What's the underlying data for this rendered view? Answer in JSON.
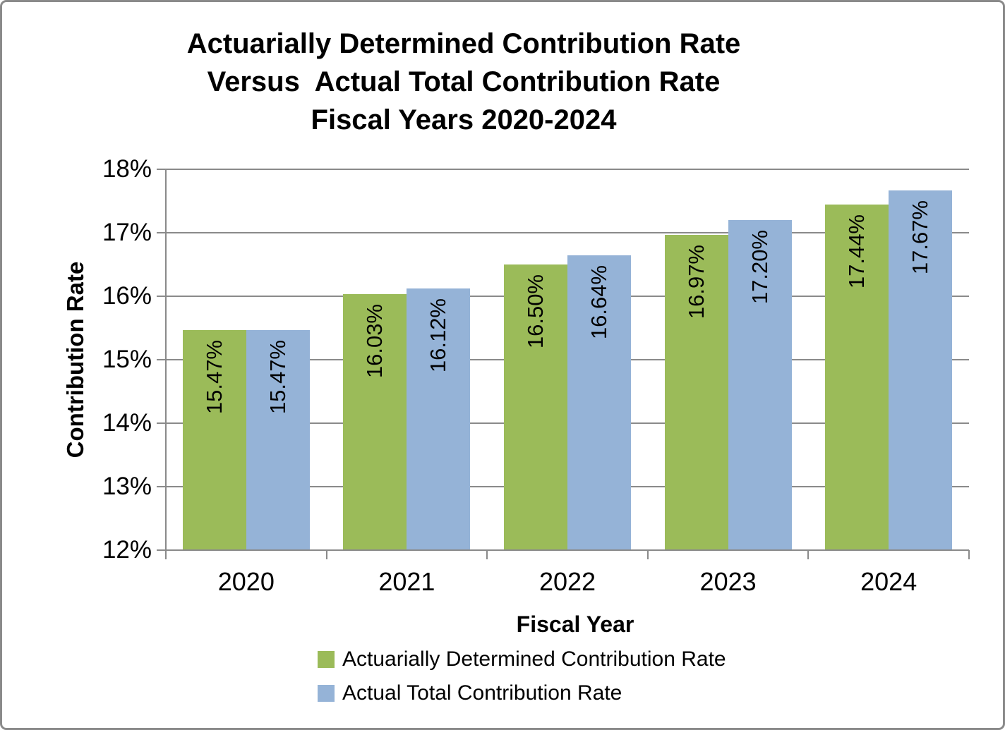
{
  "chart_data": {
    "type": "bar",
    "title": "Actuarially Determined Contribution Rate Versus Actual Total Contribution Rate Fiscal Years 2020-2024",
    "title_lines": [
      "Actuarially Determined Contribution Rate",
      "Versus  Actual Total Contribution Rate",
      "Fiscal Years 2020-2024"
    ],
    "xlabel": "Fiscal Year",
    "ylabel": "Contribution Rate",
    "categories": [
      "2020",
      "2021",
      "2022",
      "2023",
      "2024"
    ],
    "series": [
      {
        "name": "Actuarially Determined Contribution Rate",
        "color": "#9BBB59",
        "values": [
          15.47,
          16.03,
          16.5,
          16.97,
          17.44
        ],
        "labels": [
          "15.47%",
          "16.03%",
          "16.50%",
          "16.97%",
          "17.44%"
        ]
      },
      {
        "name": "Actual Total Contribution Rate",
        "color": "#95B3D7",
        "values": [
          15.47,
          16.12,
          16.64,
          17.2,
          17.67
        ],
        "labels": [
          "15.47%",
          "16.12%",
          "16.64%",
          "17.20%",
          "17.67%"
        ]
      }
    ],
    "ylim": [
      12,
      18
    ],
    "ytick_step": 1,
    "ytick_labels": [
      "12%",
      "13%",
      "14%",
      "15%",
      "16%",
      "17%",
      "18%"
    ],
    "grid": true,
    "legend_position": "bottom-left",
    "colors": {
      "axis": "#8A8A8A",
      "gridline": "#8A8A8A",
      "text": "#000000",
      "background": "#FFFFFF",
      "border": "#8A8A8A"
    }
  }
}
